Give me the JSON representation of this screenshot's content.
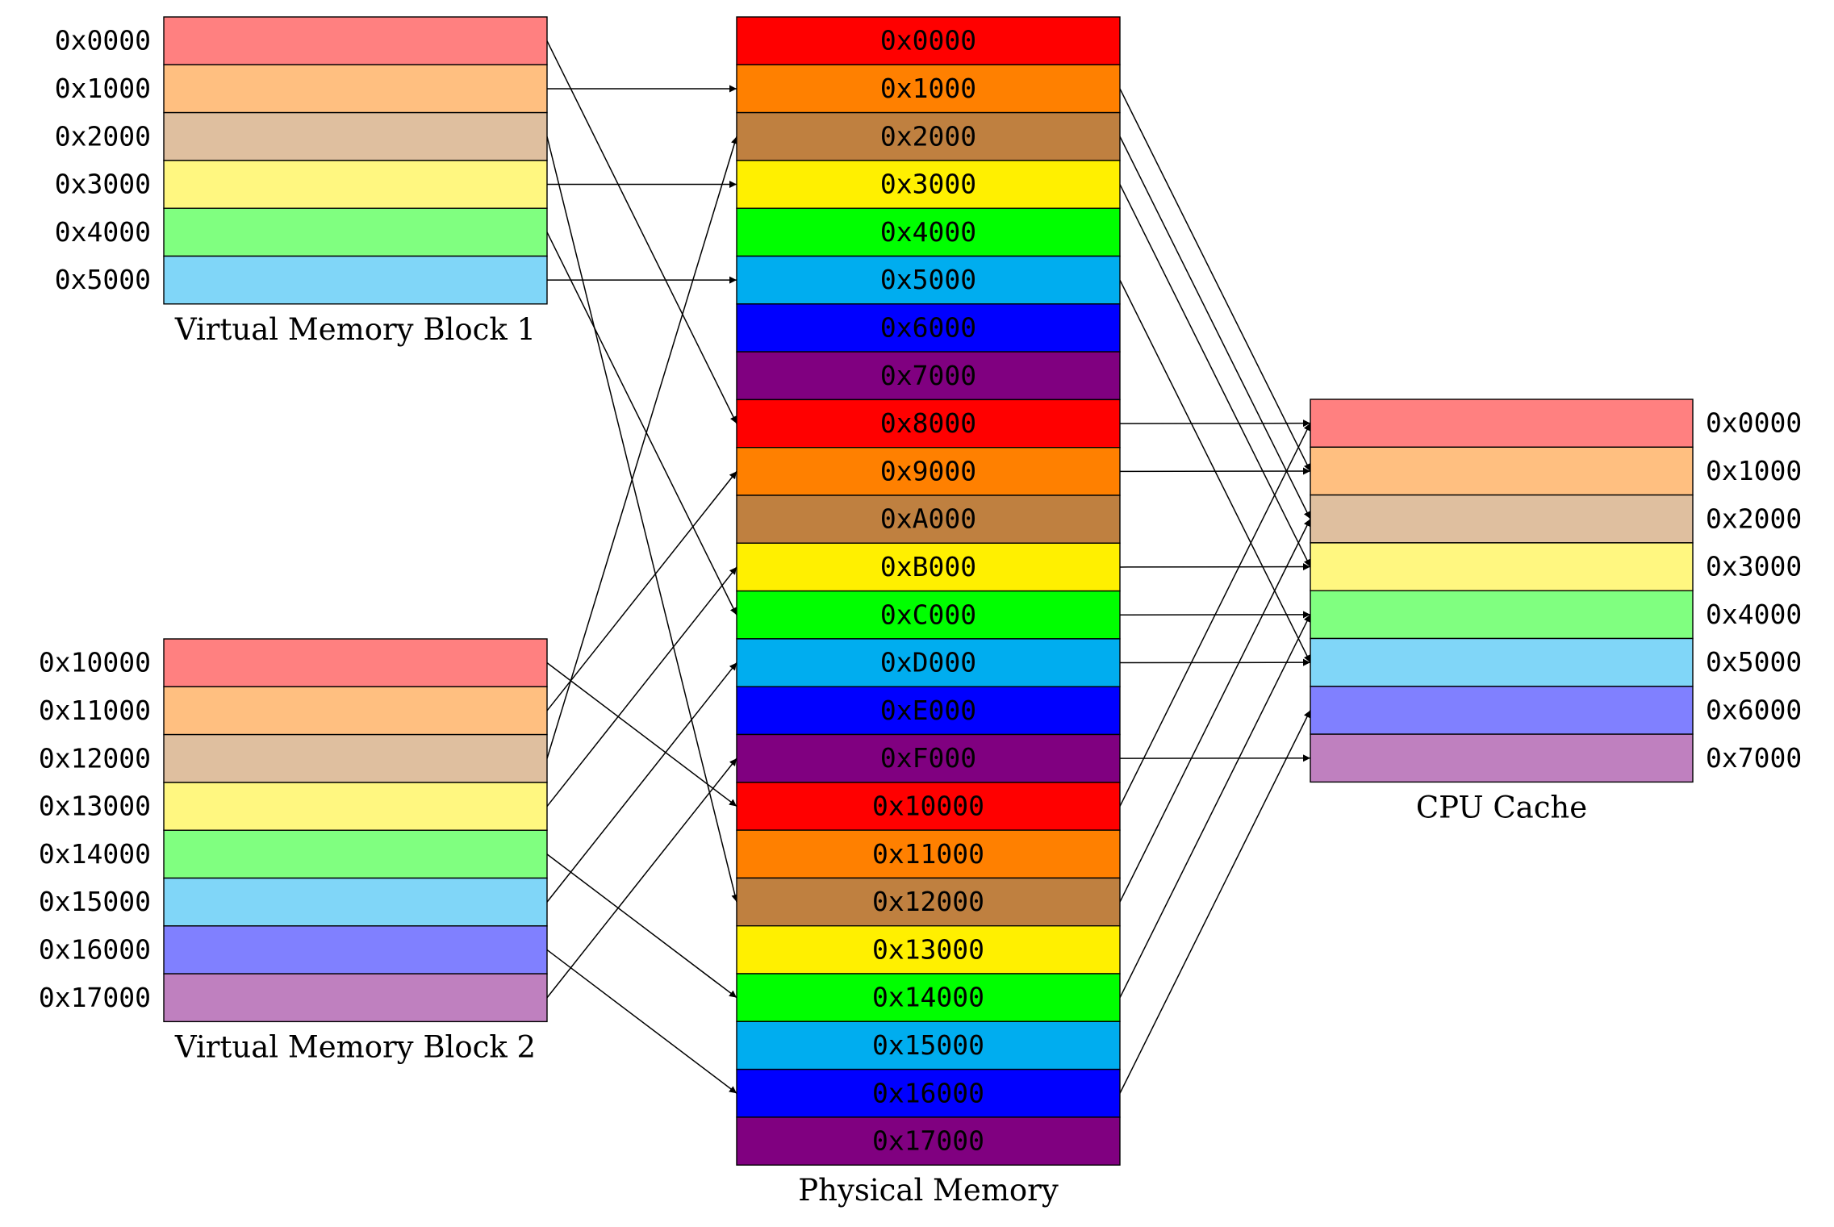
{
  "blocks": {
    "vm1": {
      "title": "Virtual Memory Block 1",
      "rows": [
        {
          "addr": "0x0000",
          "color": "#FF8080"
        },
        {
          "addr": "0x1000",
          "color": "#FFBF80"
        },
        {
          "addr": "0x2000",
          "color": "#DFBF9F"
        },
        {
          "addr": "0x3000",
          "color": "#FFF780"
        },
        {
          "addr": "0x4000",
          "color": "#80FF80"
        },
        {
          "addr": "0x5000",
          "color": "#80D6F8"
        }
      ]
    },
    "vm2": {
      "title": "Virtual Memory Block 2",
      "rows": [
        {
          "addr": "0x10000",
          "color": "#FF8080"
        },
        {
          "addr": "0x11000",
          "color": "#FFBF80"
        },
        {
          "addr": "0x12000",
          "color": "#DFBF9F"
        },
        {
          "addr": "0x13000",
          "color": "#FFF780"
        },
        {
          "addr": "0x14000",
          "color": "#80FF80"
        },
        {
          "addr": "0x15000",
          "color": "#80D6F8"
        },
        {
          "addr": "0x16000",
          "color": "#8080FF"
        },
        {
          "addr": "0x17000",
          "color": "#BF80BF"
        }
      ]
    },
    "phys": {
      "title": "Physical Memory",
      "rows": [
        {
          "addr": "0x0000",
          "color": "#FF0000"
        },
        {
          "addr": "0x1000",
          "color": "#FF8000"
        },
        {
          "addr": "0x2000",
          "color": "#BF8040"
        },
        {
          "addr": "0x3000",
          "color": "#FFF000"
        },
        {
          "addr": "0x4000",
          "color": "#00FF00"
        },
        {
          "addr": "0x5000",
          "color": "#00ADEF"
        },
        {
          "addr": "0x6000",
          "color": "#0000FF"
        },
        {
          "addr": "0x7000",
          "color": "#800080"
        },
        {
          "addr": "0x8000",
          "color": "#FF0000"
        },
        {
          "addr": "0x9000",
          "color": "#FF8000"
        },
        {
          "addr": "0xA000",
          "color": "#BF8040"
        },
        {
          "addr": "0xB000",
          "color": "#FFF000"
        },
        {
          "addr": "0xC000",
          "color": "#00FF00"
        },
        {
          "addr": "0xD000",
          "color": "#00ADEF"
        },
        {
          "addr": "0xE000",
          "color": "#0000FF"
        },
        {
          "addr": "0xF000",
          "color": "#800080"
        },
        {
          "addr": "0x10000",
          "color": "#FF0000"
        },
        {
          "addr": "0x11000",
          "color": "#FF8000"
        },
        {
          "addr": "0x12000",
          "color": "#BF8040"
        },
        {
          "addr": "0x13000",
          "color": "#FFF000"
        },
        {
          "addr": "0x14000",
          "color": "#00FF00"
        },
        {
          "addr": "0x15000",
          "color": "#00ADEF"
        },
        {
          "addr": "0x16000",
          "color": "#0000FF"
        },
        {
          "addr": "0x17000",
          "color": "#800080"
        }
      ]
    },
    "cache": {
      "title": "CPU Cache",
      "rows": [
        {
          "addr": "0x0000",
          "color": "#FF8080"
        },
        {
          "addr": "0x1000",
          "color": "#FFBF80"
        },
        {
          "addr": "0x2000",
          "color": "#DFBF9F"
        },
        {
          "addr": "0x3000",
          "color": "#FFF780"
        },
        {
          "addr": "0x4000",
          "color": "#80FF80"
        },
        {
          "addr": "0x5000",
          "color": "#80D6F8"
        },
        {
          "addr": "0x6000",
          "color": "#8080FF"
        },
        {
          "addr": "0x7000",
          "color": "#BF80BF"
        }
      ]
    }
  },
  "mappings": [
    {
      "from": "vm1",
      "from_row": 0,
      "to": "phys",
      "to_row": 8
    },
    {
      "from": "vm1",
      "from_row": 1,
      "to": "phys",
      "to_row": 1
    },
    {
      "from": "vm1",
      "from_row": 2,
      "to": "phys",
      "to_row": 18
    },
    {
      "from": "vm1",
      "from_row": 3,
      "to": "phys",
      "to_row": 3
    },
    {
      "from": "vm1",
      "from_row": 4,
      "to": "phys",
      "to_row": 12
    },
    {
      "from": "vm1",
      "from_row": 5,
      "to": "phys",
      "to_row": 5
    },
    {
      "from": "vm2",
      "from_row": 0,
      "to": "phys",
      "to_row": 16
    },
    {
      "from": "vm2",
      "from_row": 1,
      "to": "phys",
      "to_row": 9
    },
    {
      "from": "vm2",
      "from_row": 2,
      "to": "phys",
      "to_row": 2
    },
    {
      "from": "vm2",
      "from_row": 3,
      "to": "phys",
      "to_row": 11
    },
    {
      "from": "vm2",
      "from_row": 4,
      "to": "phys",
      "to_row": 20
    },
    {
      "from": "vm2",
      "from_row": 5,
      "to": "phys",
      "to_row": 13
    },
    {
      "from": "vm2",
      "from_row": 6,
      "to": "phys",
      "to_row": 22
    },
    {
      "from": "vm2",
      "from_row": 7,
      "to": "phys",
      "to_row": 15
    },
    {
      "from": "phys",
      "from_row": 1,
      "to": "cache",
      "to_row": 1
    },
    {
      "from": "phys",
      "from_row": 2,
      "to": "cache",
      "to_row": 2
    },
    {
      "from": "phys",
      "from_row": 3,
      "to": "cache",
      "to_row": 3
    },
    {
      "from": "phys",
      "from_row": 5,
      "to": "cache",
      "to_row": 5
    },
    {
      "from": "phys",
      "from_row": 8,
      "to": "cache",
      "to_row": 0
    },
    {
      "from": "phys",
      "from_row": 9,
      "to": "cache",
      "to_row": 1
    },
    {
      "from": "phys",
      "from_row": 11,
      "to": "cache",
      "to_row": 3
    },
    {
      "from": "phys",
      "from_row": 12,
      "to": "cache",
      "to_row": 4
    },
    {
      "from": "phys",
      "from_row": 13,
      "to": "cache",
      "to_row": 5
    },
    {
      "from": "phys",
      "from_row": 15,
      "to": "cache",
      "to_row": 7
    },
    {
      "from": "phys",
      "from_row": 16,
      "to": "cache",
      "to_row": 0
    },
    {
      "from": "phys",
      "from_row": 18,
      "to": "cache",
      "to_row": 2
    },
    {
      "from": "phys",
      "from_row": 20,
      "to": "cache",
      "to_row": 4
    },
    {
      "from": "phys",
      "from_row": 22,
      "to": "cache",
      "to_row": 6
    }
  ]
}
